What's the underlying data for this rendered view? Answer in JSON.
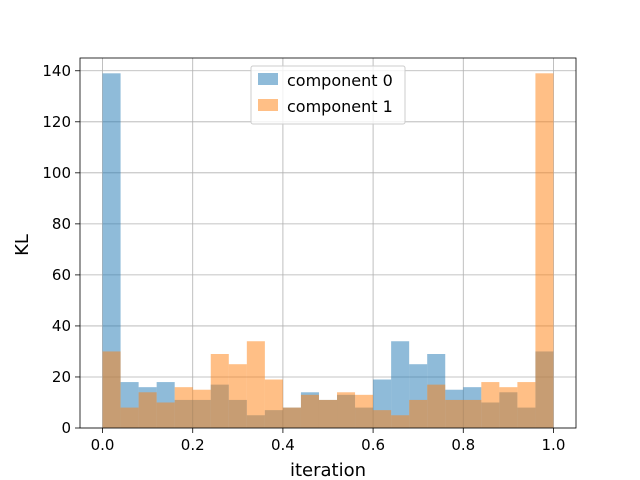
{
  "chart_data": {
    "type": "bar",
    "title": "",
    "xlabel": "iteration",
    "ylabel": "KL",
    "xlim": [
      -0.05,
      1.05
    ],
    "ylim": [
      0,
      145
    ],
    "xticks": [
      0.0,
      0.2,
      0.4,
      0.6,
      0.8,
      1.0
    ],
    "xtick_labels": [
      "0.0",
      "0.2",
      "0.4",
      "0.6",
      "0.8",
      "1.0"
    ],
    "yticks": [
      0,
      20,
      40,
      60,
      80,
      100,
      120,
      140
    ],
    "ytick_labels": [
      "0",
      "20",
      "40",
      "60",
      "80",
      "100",
      "120",
      "140"
    ],
    "grid": true,
    "legend_position": "top-center",
    "bin_edges": [
      0.0,
      0.04,
      0.08,
      0.12,
      0.16,
      0.2,
      0.24,
      0.28,
      0.32,
      0.36,
      0.4,
      0.44,
      0.48,
      0.52,
      0.56,
      0.6,
      0.64,
      0.68,
      0.72,
      0.76,
      0.8,
      0.84,
      0.88,
      0.92,
      0.96,
      1.0
    ],
    "series": [
      {
        "name": "component 0",
        "color": "#1f77b4",
        "values": [
          139,
          18,
          16,
          18,
          11,
          11,
          17,
          11,
          5,
          7,
          8,
          14,
          11,
          13,
          8,
          19,
          34,
          25,
          29,
          15,
          16,
          10,
          14,
          8,
          30
        ]
      },
      {
        "name": "component 1",
        "color": "#ff7f0e",
        "values": [
          30,
          8,
          14,
          10,
          16,
          15,
          29,
          25,
          34,
          19,
          8,
          13,
          11,
          14,
          13,
          7,
          5,
          11,
          17,
          11,
          11,
          18,
          16,
          18,
          139
        ]
      }
    ]
  }
}
